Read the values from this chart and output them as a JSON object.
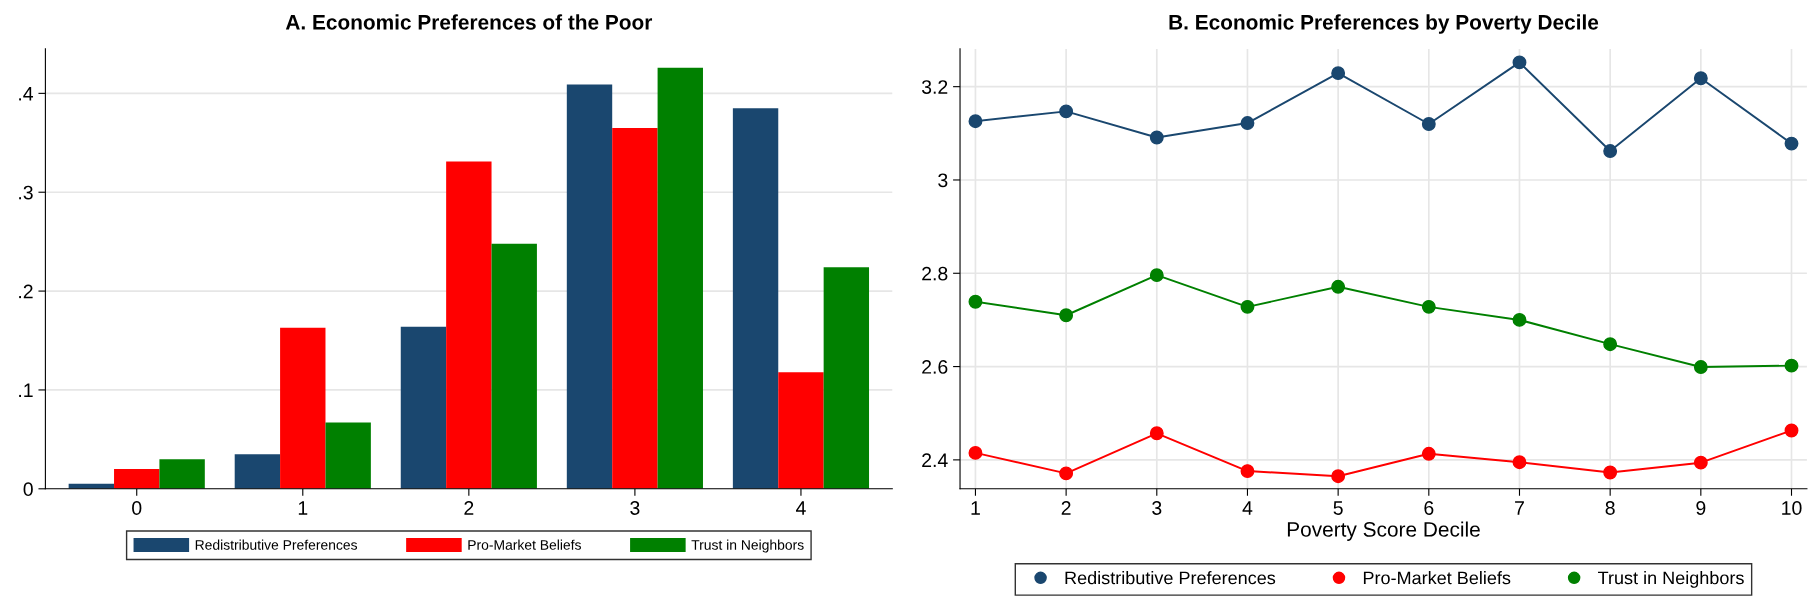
{
  "chart_data": [
    {
      "type": "bar",
      "title": "A. Economic Preferences of the Poor",
      "categories": [
        "0",
        "1",
        "2",
        "3",
        "4"
      ],
      "series": [
        {
          "name": "Redistributive Preferences",
          "color": "#1a476f",
          "values": [
            0.005,
            0.035,
            0.164,
            0.409,
            0.385
          ]
        },
        {
          "name": "Pro-Market Beliefs",
          "color": "#ff0000",
          "values": [
            0.02,
            0.163,
            0.331,
            0.365,
            0.118
          ]
        },
        {
          "name": "Trust in Neighbors",
          "color": "#008000",
          "values": [
            0.03,
            0.067,
            0.248,
            0.426,
            0.224
          ]
        }
      ],
      "ylim": [
        0,
        0.445
      ],
      "yticks": [
        0,
        {
          "value": 0.1,
          "label": ".1"
        },
        {
          "value": 0.2,
          "label": ".2"
        },
        {
          "value": 0.3,
          "label": ".3"
        },
        {
          "value": 0.4,
          "label": ".4"
        }
      ],
      "grid": "y",
      "legend": "bottom"
    },
    {
      "type": "line",
      "title": "B. Economic Preferences by Poverty Decile",
      "xlabel": "Poverty Score Decile",
      "x": [
        1,
        2,
        3,
        4,
        5,
        6,
        7,
        8,
        9,
        10
      ],
      "series": [
        {
          "name": "Redistributive Preferences",
          "color": "#1a476f",
          "values": [
            3.126,
            3.147,
            3.091,
            3.122,
            3.229,
            3.12,
            3.252,
            3.062,
            3.218,
            3.078
          ]
        },
        {
          "name": "Pro-Market Beliefs",
          "color": "#ff0000",
          "values": [
            2.415,
            2.371,
            2.457,
            2.376,
            2.365,
            2.413,
            2.395,
            2.373,
            2.394,
            2.463
          ]
        },
        {
          "name": "Trust in Neighbors",
          "color": "#008000",
          "values": [
            2.739,
            2.71,
            2.796,
            2.728,
            2.771,
            2.728,
            2.7,
            2.648,
            2.599,
            2.602
          ]
        }
      ],
      "xlim": [
        0.83,
        10.17
      ],
      "xticks": [
        1,
        2,
        3,
        4,
        5,
        6,
        7,
        8,
        9,
        10
      ],
      "ylim": [
        2.338,
        3.281
      ],
      "yticks": [
        2.4,
        2.6,
        2.8,
        3,
        3.2
      ],
      "grid": true,
      "legend": "bottom",
      "marker": "circle",
      "line_style": "solid"
    }
  ]
}
